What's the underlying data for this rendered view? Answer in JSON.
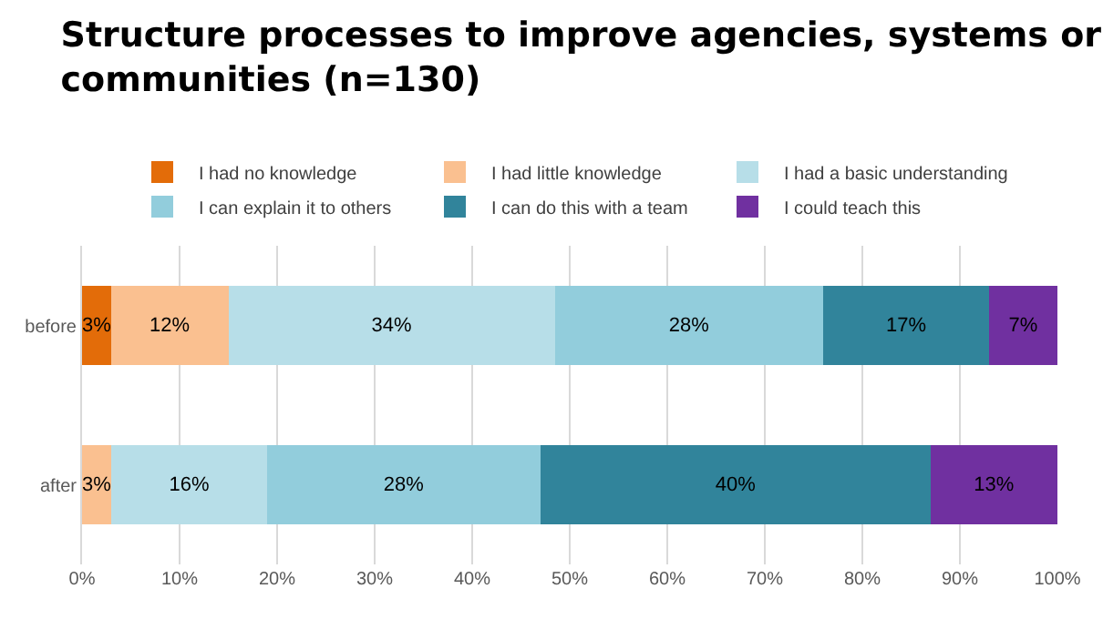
{
  "chart_data": {
    "type": "bar",
    "title": "Structure processes to improve agencies, systems or communities (n=130)",
    "orientation": "horizontal",
    "stacked": true,
    "categories": [
      "before",
      "after"
    ],
    "series": [
      {
        "name": "I had no knowledge",
        "color": "#e36c09",
        "values": [
          3,
          0
        ],
        "value_labels": [
          "3%",
          null
        ]
      },
      {
        "name": "I had little knowledge",
        "color": "#fac090",
        "values": [
          12,
          3
        ],
        "value_labels": [
          "12%",
          "3%"
        ]
      },
      {
        "name": "I had a basic understanding",
        "color": "#b7dee8",
        "values": [
          33.5,
          16
        ],
        "value_labels": [
          "34%",
          "16%"
        ]
      },
      {
        "name": "I can explain it to others",
        "color": "#92cddc",
        "values": [
          27.5,
          28
        ],
        "value_labels": [
          "28%",
          "28%"
        ]
      },
      {
        "name": "I can do this with a team",
        "color": "#31849b",
        "values": [
          17,
          40
        ],
        "value_labels": [
          "17%",
          "40%"
        ]
      },
      {
        "name": "I could teach this",
        "color": "#7030a0",
        "values": [
          7,
          13
        ],
        "value_labels": [
          "7%",
          "13%"
        ]
      }
    ],
    "xlim": [
      0,
      100
    ],
    "xticks": [
      {
        "value": 0,
        "label": "0%"
      },
      {
        "value": 10,
        "label": "10%"
      },
      {
        "value": 20,
        "label": "20%"
      },
      {
        "value": 30,
        "label": "30%"
      },
      {
        "value": 40,
        "label": "40%"
      },
      {
        "value": 50,
        "label": "50%"
      },
      {
        "value": 60,
        "label": "60%"
      },
      {
        "value": 70,
        "label": "70%"
      },
      {
        "value": 80,
        "label": "80%"
      },
      {
        "value": 90,
        "label": "90%"
      },
      {
        "value": 100,
        "label": "100%"
      }
    ],
    "grid": "x",
    "legend": "top"
  }
}
